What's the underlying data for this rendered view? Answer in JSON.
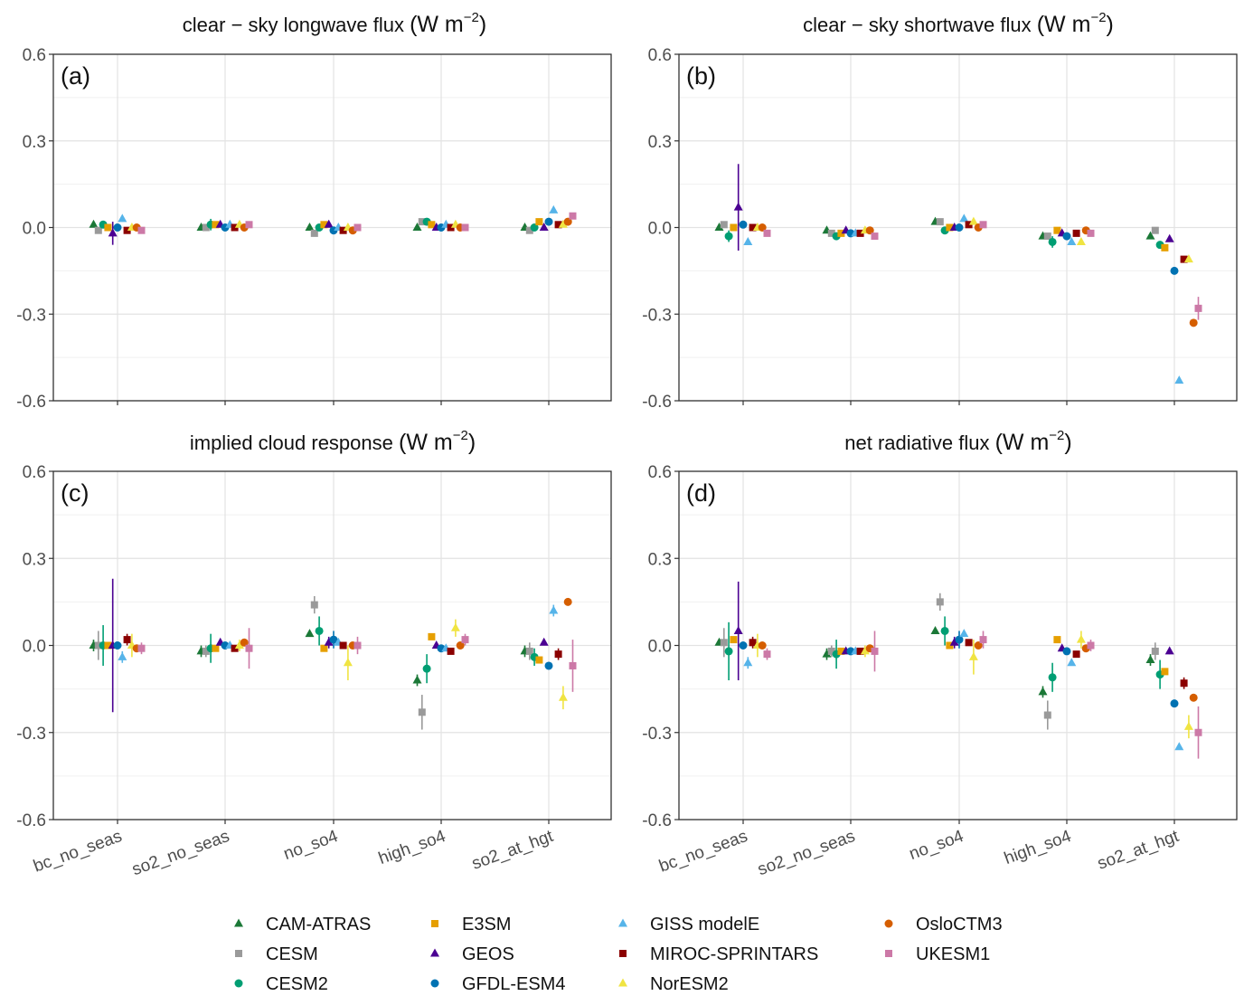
{
  "models": [
    {
      "name": "CAM-ATRAS",
      "color": "#1b7837",
      "shape": "triangle"
    },
    {
      "name": "CESM",
      "color": "#9a9a9a",
      "shape": "square"
    },
    {
      "name": "CESM2",
      "color": "#009e73",
      "shape": "circle"
    },
    {
      "name": "E3SM",
      "color": "#e69f00",
      "shape": "square"
    },
    {
      "name": "GEOS",
      "color": "#4b0092",
      "shape": "triangle"
    },
    {
      "name": "GFDL-ESM4",
      "color": "#0072b2",
      "shape": "circle"
    },
    {
      "name": "GISS modelE",
      "color": "#56b4e9",
      "shape": "triangle"
    },
    {
      "name": "MIROC-SPRINTARS",
      "color": "#8b0000",
      "shape": "square"
    },
    {
      "name": "NorESM2",
      "color": "#f0e442",
      "shape": "triangle"
    },
    {
      "name": "OsloCTM3",
      "color": "#d55e00",
      "shape": "circle"
    },
    {
      "name": "UKESM1",
      "color": "#cc79a7",
      "shape": "square"
    }
  ],
  "legend": {
    "columns": [
      [
        "CAM-ATRAS",
        "CESM",
        "CESM2"
      ],
      [
        "E3SM",
        "GEOS",
        "GFDL-ESM4"
      ],
      [
        "GISS modelE",
        "MIROC-SPRINTARS",
        "NorESM2"
      ],
      [
        "OsloCTM3",
        "UKESM1"
      ]
    ]
  },
  "chart_data": [
    {
      "type": "scatter",
      "panel_label": "(a)",
      "title": "clear − sky longwave flux",
      "title_unit": "(W m",
      "title_exp": "−2",
      "title_close": ")",
      "categories": [
        "bc_no_seas",
        "so2_no_seas",
        "no_so4",
        "high_so4",
        "so2_at_hgt"
      ],
      "ylim": [
        -0.6,
        0.6
      ],
      "yticks": [
        "0.6",
        "0.3",
        "0.0",
        "-0.3",
        "-0.6"
      ],
      "ytick_values": [
        0.6,
        0.3,
        0.0,
        -0.3,
        -0.6
      ],
      "grid": true,
      "series": [
        {
          "name": "CAM-ATRAS",
          "values": [
            0.01,
            0.0,
            0.0,
            0.0,
            0.0
          ],
          "err": [
            0.01,
            0.01,
            0.01,
            0.01,
            0.01
          ]
        },
        {
          "name": "CESM",
          "values": [
            -0.01,
            0.0,
            -0.02,
            0.02,
            -0.01
          ],
          "err": [
            0.01,
            0.01,
            0.01,
            0.01,
            0.01
          ]
        },
        {
          "name": "CESM2",
          "values": [
            0.01,
            0.01,
            0.0,
            0.02,
            0.0
          ],
          "err": [
            0.01,
            0.02,
            0.01,
            0.01,
            0.01
          ]
        },
        {
          "name": "E3SM",
          "values": [
            0.0,
            0.01,
            0.01,
            0.01,
            0.02
          ],
          "err": [
            0.01,
            0.01,
            0.01,
            0.01,
            0.01
          ]
        },
        {
          "name": "GEOS",
          "values": [
            -0.02,
            0.01,
            0.01,
            0.0,
            0.0
          ],
          "err": [
            0.04,
            0.01,
            0.01,
            0.01,
            0.01
          ]
        },
        {
          "name": "GFDL-ESM4",
          "values": [
            0.0,
            0.0,
            -0.01,
            0.0,
            0.02
          ],
          "err": [
            0.01,
            0.01,
            0.01,
            0.01,
            0.01
          ]
        },
        {
          "name": "GISS modelE",
          "values": [
            0.03,
            0.01,
            0.0,
            0.01,
            0.06
          ],
          "err": [
            0.01,
            0.01,
            0.01,
            0.01,
            0.01
          ]
        },
        {
          "name": "MIROC-SPRINTARS",
          "values": [
            -0.01,
            0.0,
            -0.01,
            0.0,
            0.01
          ],
          "err": [
            0.01,
            0.01,
            0.01,
            0.01,
            0.01
          ]
        },
        {
          "name": "NorESM2",
          "values": [
            0.0,
            0.01,
            0.0,
            0.01,
            0.01
          ],
          "err": [
            0.01,
            0.01,
            0.01,
            0.01,
            0.01
          ]
        },
        {
          "name": "OsloCTM3",
          "values": [
            0.0,
            0.0,
            -0.01,
            0.0,
            0.02
          ],
          "err": [
            0.01,
            0.01,
            0.01,
            0.01,
            0.01
          ]
        },
        {
          "name": "UKESM1",
          "values": [
            -0.01,
            0.01,
            0.0,
            0.0,
            0.04
          ],
          "err": [
            0.01,
            0.01,
            0.01,
            0.01,
            0.01
          ]
        }
      ]
    },
    {
      "type": "scatter",
      "panel_label": "(b)",
      "title": "clear − sky shortwave flux",
      "title_unit": "(W m",
      "title_exp": "−2",
      "title_close": ")",
      "categories": [
        "bc_no_seas",
        "so2_no_seas",
        "no_so4",
        "high_so4",
        "so2_at_hgt"
      ],
      "ylim": [
        -0.6,
        0.6
      ],
      "yticks": [
        "0.6",
        "0.3",
        "0.0",
        "-0.3",
        "-0.6"
      ],
      "ytick_values": [
        0.6,
        0.3,
        0.0,
        -0.3,
        -0.6
      ],
      "grid": true,
      "series": [
        {
          "name": "CAM-ATRAS",
          "values": [
            0.0,
            -0.01,
            0.02,
            -0.03,
            -0.03
          ],
          "err": [
            0.01,
            0.01,
            0.01,
            0.01,
            0.01
          ]
        },
        {
          "name": "CESM",
          "values": [
            0.01,
            -0.02,
            0.02,
            -0.03,
            -0.01
          ],
          "err": [
            0.01,
            0.01,
            0.01,
            0.01,
            0.01
          ]
        },
        {
          "name": "CESM2",
          "values": [
            -0.03,
            -0.03,
            -0.01,
            -0.05,
            -0.06
          ],
          "err": [
            0.02,
            0.01,
            0.01,
            0.02,
            0.01
          ]
        },
        {
          "name": "E3SM",
          "values": [
            0.0,
            -0.02,
            0.0,
            -0.01,
            -0.07
          ],
          "err": [
            0.01,
            0.01,
            0.01,
            0.01,
            0.01
          ]
        },
        {
          "name": "GEOS",
          "values": [
            0.07,
            -0.01,
            0.0,
            -0.02,
            -0.04
          ],
          "err": [
            0.15,
            0.01,
            0.01,
            0.01,
            0.01
          ]
        },
        {
          "name": "GFDL-ESM4",
          "values": [
            0.01,
            -0.02,
            0.0,
            -0.03,
            -0.15
          ],
          "err": [
            0.01,
            0.01,
            0.01,
            0.01,
            0.01
          ]
        },
        {
          "name": "GISS modelE",
          "values": [
            -0.05,
            -0.02,
            0.03,
            -0.05,
            -0.53
          ],
          "err": [
            0.01,
            0.01,
            0.01,
            0.01,
            0.01
          ]
        },
        {
          "name": "MIROC-SPRINTARS",
          "values": [
            0.0,
            -0.02,
            0.01,
            -0.02,
            -0.11
          ],
          "err": [
            0.01,
            0.01,
            0.01,
            0.01,
            0.01
          ]
        },
        {
          "name": "NorESM2",
          "values": [
            0.0,
            -0.01,
            0.02,
            -0.05,
            -0.11
          ],
          "err": [
            0.01,
            0.01,
            0.01,
            0.01,
            0.01
          ]
        },
        {
          "name": "OsloCTM3",
          "values": [
            0.0,
            -0.01,
            0.0,
            -0.01,
            -0.33
          ],
          "err": [
            0.01,
            0.01,
            0.01,
            0.01,
            0.01
          ]
        },
        {
          "name": "UKESM1",
          "values": [
            -0.02,
            -0.03,
            0.01,
            -0.02,
            -0.28
          ],
          "err": [
            0.01,
            0.01,
            0.01,
            0.01,
            0.04
          ]
        }
      ]
    },
    {
      "type": "scatter",
      "panel_label": "(c)",
      "title": "implied cloud response",
      "title_unit": "(W m",
      "title_exp": "−2",
      "title_close": ")",
      "categories": [
        "bc_no_seas",
        "so2_no_seas",
        "no_so4",
        "high_so4",
        "so2_at_hgt"
      ],
      "ylim": [
        -0.6,
        0.6
      ],
      "yticks": [
        "0.6",
        "0.3",
        "0.0",
        "-0.3",
        "-0.6"
      ],
      "ytick_values": [
        0.6,
        0.3,
        0.0,
        -0.3,
        -0.6
      ],
      "grid": true,
      "series": [
        {
          "name": "CAM-ATRAS",
          "values": [
            0.0,
            -0.02,
            0.04,
            -0.12,
            -0.02
          ],
          "err": [
            0.02,
            0.02,
            0.01,
            0.02,
            0.02
          ]
        },
        {
          "name": "CESM",
          "values": [
            0.0,
            -0.02,
            0.14,
            -0.23,
            -0.02
          ],
          "err": [
            0.05,
            0.02,
            0.03,
            0.06,
            0.03
          ]
        },
        {
          "name": "CESM2",
          "values": [
            0.0,
            -0.01,
            0.05,
            -0.08,
            -0.04
          ],
          "err": [
            0.07,
            0.05,
            0.05,
            0.05,
            0.03
          ]
        },
        {
          "name": "E3SM",
          "values": [
            0.0,
            -0.01,
            -0.01,
            0.03,
            -0.05
          ],
          "err": [
            0.01,
            0.01,
            0.01,
            0.01,
            0.01
          ]
        },
        {
          "name": "GEOS",
          "values": [
            0.0,
            0.01,
            0.01,
            0.0,
            0.01
          ],
          "err": [
            0.23,
            0.01,
            0.02,
            0.01,
            0.01
          ]
        },
        {
          "name": "GFDL-ESM4",
          "values": [
            0.0,
            0.0,
            0.02,
            -0.01,
            -0.07
          ],
          "err": [
            0.01,
            0.01,
            0.03,
            0.01,
            0.01
          ]
        },
        {
          "name": "GISS modelE",
          "values": [
            -0.04,
            0.0,
            0.01,
            -0.01,
            0.12
          ],
          "err": [
            0.02,
            0.01,
            0.01,
            0.01,
            0.02
          ]
        },
        {
          "name": "MIROC-SPRINTARS",
          "values": [
            0.02,
            -0.01,
            0.0,
            -0.02,
            -0.03
          ],
          "err": [
            0.02,
            0.01,
            0.01,
            0.01,
            0.02
          ]
        },
        {
          "name": "NorESM2",
          "values": [
            0.0,
            0.0,
            -0.06,
            0.06,
            -0.18
          ],
          "err": [
            0.04,
            0.02,
            0.06,
            0.03,
            0.04
          ]
        },
        {
          "name": "OsloCTM3",
          "values": [
            -0.01,
            0.01,
            0.0,
            0.0,
            0.15
          ],
          "err": [
            0.01,
            0.01,
            0.01,
            0.01,
            0.01
          ]
        },
        {
          "name": "UKESM1",
          "values": [
            -0.01,
            -0.01,
            0.0,
            0.02,
            -0.07
          ],
          "err": [
            0.02,
            0.07,
            0.03,
            0.02,
            0.09
          ]
        }
      ]
    },
    {
      "type": "scatter",
      "panel_label": "(d)",
      "title": "net radiative flux",
      "title_unit": "(W m",
      "title_exp": "−2",
      "title_close": ")",
      "categories": [
        "bc_no_seas",
        "so2_no_seas",
        "no_so4",
        "high_so4",
        "so2_at_hgt"
      ],
      "ylim": [
        -0.6,
        0.6
      ],
      "yticks": [
        "0.6",
        "0.3",
        "0.0",
        "-0.3",
        "-0.6"
      ],
      "ytick_values": [
        0.6,
        0.3,
        0.0,
        -0.3,
        -0.6
      ],
      "grid": true,
      "series": [
        {
          "name": "CAM-ATRAS",
          "values": [
            0.01,
            -0.03,
            0.05,
            -0.16,
            -0.05
          ],
          "err": [
            0.01,
            0.02,
            0.01,
            0.02,
            0.02
          ]
        },
        {
          "name": "CESM",
          "values": [
            0.01,
            -0.02,
            0.15,
            -0.24,
            -0.02
          ],
          "err": [
            0.05,
            0.02,
            0.03,
            0.05,
            0.03
          ]
        },
        {
          "name": "CESM2",
          "values": [
            -0.02,
            -0.03,
            0.05,
            -0.11,
            -0.1
          ],
          "err": [
            0.1,
            0.05,
            0.05,
            0.05,
            0.05
          ]
        },
        {
          "name": "E3SM",
          "values": [
            0.02,
            -0.02,
            0.0,
            0.02,
            -0.09
          ],
          "err": [
            0.01,
            0.01,
            0.01,
            0.01,
            0.01
          ]
        },
        {
          "name": "GEOS",
          "values": [
            0.05,
            -0.02,
            0.01,
            -0.01,
            -0.02
          ],
          "err": [
            0.17,
            0.01,
            0.02,
            0.01,
            0.01
          ]
        },
        {
          "name": "GFDL-ESM4",
          "values": [
            0.0,
            -0.02,
            0.02,
            -0.02,
            -0.2
          ],
          "err": [
            0.01,
            0.01,
            0.03,
            0.01,
            0.01
          ]
        },
        {
          "name": "GISS modelE",
          "values": [
            -0.06,
            -0.02,
            0.04,
            -0.06,
            -0.35
          ],
          "err": [
            0.02,
            0.01,
            0.01,
            0.01,
            0.01
          ]
        },
        {
          "name": "MIROC-SPRINTARS",
          "values": [
            0.01,
            -0.02,
            0.01,
            -0.03,
            -0.13
          ],
          "err": [
            0.02,
            0.01,
            0.01,
            0.01,
            0.02
          ]
        },
        {
          "name": "NorESM2",
          "values": [
            0.0,
            -0.02,
            -0.04,
            0.02,
            -0.28
          ],
          "err": [
            0.04,
            0.02,
            0.06,
            0.03,
            0.04
          ]
        },
        {
          "name": "OsloCTM3",
          "values": [
            0.0,
            -0.01,
            0.0,
            -0.01,
            -0.18
          ],
          "err": [
            0.01,
            0.01,
            0.01,
            0.01,
            0.01
          ]
        },
        {
          "name": "UKESM1",
          "values": [
            -0.03,
            -0.02,
            0.02,
            0.0,
            -0.3
          ],
          "err": [
            0.02,
            0.07,
            0.03,
            0.02,
            0.09
          ]
        }
      ]
    }
  ]
}
